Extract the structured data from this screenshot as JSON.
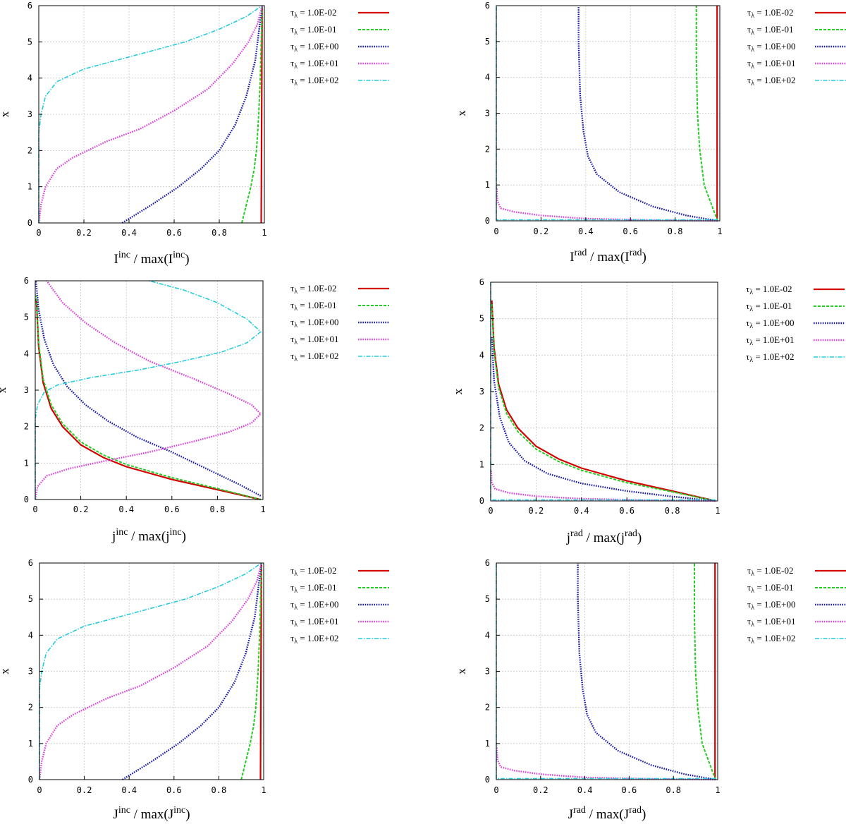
{
  "chart_data": [
    {
      "type": "line",
      "panel": "I_inc",
      "xlabel": {
        "base": "I",
        "sup": "inc",
        "mid": " / max(I",
        "sup2": "inc",
        "end": ")"
      },
      "ylabel": "x",
      "xlim": [
        0,
        1
      ],
      "ylim": [
        0,
        6
      ],
      "xticks": [
        "0",
        "0.2",
        "0.4",
        "0.6",
        "0.8",
        "1"
      ],
      "yticks": [
        "0",
        "1",
        "2",
        "3",
        "4",
        "5",
        "6"
      ],
      "legend_position": "outside-right",
      "grid": true,
      "series": [
        {
          "name": "1.0E-02",
          "color": "#d40000",
          "dash": "solid",
          "x": [
            0.986,
            0.99
          ],
          "y": [
            0,
            6
          ]
        },
        {
          "name": "1.0E-01",
          "color": "#22cc22",
          "dash": "dashed",
          "x": [
            0.9,
            0.92,
            0.94,
            0.955,
            0.965,
            0.975,
            0.982,
            0.99
          ],
          "y": [
            0,
            0.5,
            1,
            1.5,
            2,
            3,
            4,
            6
          ]
        },
        {
          "name": "1.0E+00",
          "color": "#1a1aaa",
          "dash": "dotted",
          "x": [
            0.37,
            0.5,
            0.62,
            0.72,
            0.8,
            0.87,
            0.92,
            0.96,
            0.99
          ],
          "y": [
            0,
            0.5,
            1,
            1.5,
            2,
            2.7,
            3.5,
            4.5,
            6
          ]
        },
        {
          "name": "1.0E+01",
          "color": "#dd44dd",
          "dash": "dotted",
          "x": [
            0,
            0.01,
            0.03,
            0.08,
            0.15,
            0.3,
            0.45,
            0.6,
            0.75,
            0.86,
            0.93,
            0.97,
            0.99
          ],
          "y": [
            0,
            0.5,
            1,
            1.5,
            1.8,
            2.25,
            2.6,
            3.1,
            3.7,
            4.4,
            5,
            5.5,
            6
          ]
        },
        {
          "name": "1.0E+02",
          "color": "#22ccdd",
          "dash": "dashdot",
          "x": [
            0,
            0.0,
            0.01,
            0.03,
            0.08,
            0.2,
            0.35,
            0.5,
            0.65,
            0.8,
            0.92,
            0.99
          ],
          "y": [
            0,
            2.5,
            3.0,
            3.5,
            3.9,
            4.25,
            4.5,
            4.75,
            5.0,
            5.35,
            5.7,
            6
          ]
        }
      ]
    },
    {
      "type": "line",
      "panel": "I_rad",
      "xlabel": {
        "base": "I",
        "sup": "rad",
        "mid": " / max(I",
        "sup2": "rad",
        "end": ")"
      },
      "ylabel": "x",
      "xlim": [
        0,
        1
      ],
      "ylim": [
        0,
        6
      ],
      "xticks": [
        "0",
        "0.2",
        "0.4",
        "0.6",
        "0.8",
        "1"
      ],
      "yticks": [
        "0",
        "1",
        "2",
        "3",
        "4",
        "5",
        "6"
      ],
      "legend_position": "outside-right",
      "grid": true,
      "series": [
        {
          "name": "1.0E-02",
          "color": "#d40000",
          "dash": "solid",
          "x": [
            0.988,
            0.988
          ],
          "y": [
            0,
            6
          ]
        },
        {
          "name": "1.0E-01",
          "color": "#22cc22",
          "dash": "dashed",
          "x": [
            0.99,
            0.96,
            0.93,
            0.91,
            0.9,
            0.895,
            0.895
          ],
          "y": [
            0,
            0.5,
            1.0,
            2.0,
            3.0,
            4.5,
            6
          ]
        },
        {
          "name": "1.0E+00",
          "color": "#1a1aaa",
          "dash": "dotted",
          "x": [
            0.99,
            0.85,
            0.7,
            0.55,
            0.45,
            0.41,
            0.39,
            0.375,
            0.368,
            0.368
          ],
          "y": [
            0,
            0.15,
            0.4,
            0.8,
            1.3,
            1.8,
            2.5,
            3.5,
            5,
            6
          ]
        },
        {
          "name": "1.0E+01",
          "color": "#dd44dd",
          "dash": "dotted",
          "x": [
            0.99,
            0.7,
            0.4,
            0.2,
            0.08,
            0.02,
            0.005,
            0.002
          ],
          "y": [
            0,
            0.02,
            0.06,
            0.15,
            0.25,
            0.35,
            0.55,
            0.9
          ]
        },
        {
          "name": "1.0E+02",
          "color": "#22ccdd",
          "dash": "dashdot",
          "x": [
            0.99,
            0.0,
            0.0
          ],
          "y": [
            0.03,
            0.03,
            6
          ]
        }
      ]
    },
    {
      "type": "line",
      "panel": "j_inc",
      "xlabel": {
        "base": "j",
        "sup": "inc",
        "mid": " / max(j",
        "sup2": "inc",
        "end": ")"
      },
      "ylabel": "x",
      "xlim": [
        0,
        1
      ],
      "ylim": [
        0,
        6
      ],
      "xticks": [
        "0",
        "0.2",
        "0.4",
        "0.6",
        "0.8",
        "1"
      ],
      "yticks": [
        "0",
        "1",
        "2",
        "3",
        "4",
        "5",
        "6"
      ],
      "legend_position": "outside-right",
      "grid": true,
      "series": [
        {
          "name": "1.0E-02",
          "color": "#d40000",
          "dash": "solid",
          "x": [
            0.99,
            0.8,
            0.6,
            0.4,
            0.3,
            0.2,
            0.12,
            0.07,
            0.035,
            0.015,
            0.005
          ],
          "y": [
            0,
            0.27,
            0.55,
            0.9,
            1.15,
            1.5,
            2.0,
            2.5,
            3.2,
            4.2,
            5.5
          ]
        },
        {
          "name": "1.0E-01",
          "color": "#22cc22",
          "dash": "dashed",
          "x": [
            0.99,
            0.8,
            0.6,
            0.4,
            0.3,
            0.2,
            0.12,
            0.07,
            0.035,
            0.015,
            0.005
          ],
          "y": [
            0,
            0.3,
            0.6,
            0.96,
            1.22,
            1.58,
            2.08,
            2.6,
            3.3,
            4.3,
            5.6
          ]
        },
        {
          "name": "1.0E+00",
          "color": "#1a1aaa",
          "dash": "dotted",
          "x": [
            0.99,
            0.9,
            0.75,
            0.6,
            0.45,
            0.32,
            0.22,
            0.14,
            0.08,
            0.04,
            0.015,
            0.003
          ],
          "y": [
            0.1,
            0.4,
            0.85,
            1.3,
            1.7,
            2.15,
            2.6,
            3.1,
            3.7,
            4.4,
            5.2,
            6
          ]
        },
        {
          "name": "1.0E+01",
          "color": "#dd44dd",
          "dash": "dotted",
          "x": [
            0.0,
            0.01,
            0.05,
            0.15,
            0.3,
            0.5,
            0.7,
            0.85,
            0.95,
            0.99,
            0.95,
            0.85,
            0.7,
            0.5,
            0.35,
            0.22,
            0.12,
            0.05
          ],
          "y": [
            0,
            0.35,
            0.65,
            0.85,
            1.05,
            1.3,
            1.6,
            1.85,
            2.1,
            2.35,
            2.6,
            2.9,
            3.3,
            3.8,
            4.3,
            4.85,
            5.4,
            6
          ]
        },
        {
          "name": "1.0E+02",
          "color": "#22ccdd",
          "dash": "dashdot",
          "x": [
            0.0,
            0.0,
            0.01,
            0.04,
            0.1,
            0.25,
            0.45,
            0.65,
            0.82,
            0.93,
            0.99,
            0.93,
            0.8,
            0.65,
            0.5
          ],
          "y": [
            0,
            2.2,
            2.6,
            2.95,
            3.15,
            3.35,
            3.55,
            3.8,
            4.05,
            4.3,
            4.6,
            4.95,
            5.4,
            5.75,
            6.0
          ]
        }
      ]
    },
    {
      "type": "line",
      "panel": "j_rad",
      "xlabel": {
        "base": "j",
        "sup": "rad",
        "mid": " / max(j",
        "sup2": "rad",
        "end": ")"
      },
      "ylabel": "x",
      "xlim": [
        0,
        1
      ],
      "ylim": [
        0,
        6
      ],
      "xticks": [
        "0",
        "0.2",
        "0.4",
        "0.6",
        "0.8",
        "1"
      ],
      "yticks": [
        "0",
        "1",
        "2",
        "3",
        "4",
        "5",
        "6"
      ],
      "legend_position": "outside-right",
      "grid": true,
      "series": [
        {
          "name": "1.0E-02",
          "color": "#d40000",
          "dash": "solid",
          "x": [
            0.99,
            0.8,
            0.6,
            0.4,
            0.3,
            0.2,
            0.12,
            0.07,
            0.035,
            0.015,
            0.005
          ],
          "y": [
            0,
            0.27,
            0.55,
            0.9,
            1.15,
            1.5,
            2.0,
            2.5,
            3.2,
            4.2,
            5.5
          ]
        },
        {
          "name": "1.0E-01",
          "color": "#22cc22",
          "dash": "dashed",
          "x": [
            0.99,
            0.8,
            0.6,
            0.4,
            0.3,
            0.2,
            0.12,
            0.07,
            0.035,
            0.015,
            0.005
          ],
          "y": [
            0,
            0.25,
            0.5,
            0.84,
            1.08,
            1.42,
            1.9,
            2.4,
            3.1,
            4.1,
            5.4
          ]
        },
        {
          "name": "1.0E+00",
          "color": "#1a1aaa",
          "dash": "dotted",
          "x": [
            0.99,
            0.8,
            0.6,
            0.4,
            0.25,
            0.15,
            0.08,
            0.04,
            0.015,
            0.005
          ],
          "y": [
            0,
            0.12,
            0.27,
            0.48,
            0.75,
            1.1,
            1.6,
            2.3,
            3.3,
            4.5
          ]
        },
        {
          "name": "1.0E+01",
          "color": "#dd44dd",
          "dash": "dotted",
          "x": [
            0.99,
            0.7,
            0.4,
            0.2,
            0.08,
            0.02,
            0.005,
            0.002
          ],
          "y": [
            0,
            0.02,
            0.06,
            0.13,
            0.22,
            0.33,
            0.5,
            0.85
          ]
        },
        {
          "name": "1.0E+02",
          "color": "#22ccdd",
          "dash": "dashdot",
          "x": [
            0.99,
            0.0,
            0.0
          ],
          "y": [
            0.03,
            0.03,
            6
          ]
        }
      ]
    },
    {
      "type": "line",
      "panel": "J_inc",
      "xlabel": {
        "base": "J",
        "sup": "inc",
        "mid": " / max(J",
        "sup2": "inc",
        "end": ")"
      },
      "ylabel": "x",
      "xlim": [
        0,
        1
      ],
      "ylim": [
        0,
        6
      ],
      "xticks": [
        "0",
        "0.2",
        "0.4",
        "0.6",
        "0.8",
        "1"
      ],
      "yticks": [
        "0",
        "1",
        "2",
        "3",
        "4",
        "5",
        "6"
      ],
      "legend_position": "outside-right",
      "grid": true,
      "series": [
        {
          "name": "1.0E-02",
          "color": "#d40000",
          "dash": "solid",
          "x": [
            0.986,
            0.99
          ],
          "y": [
            0,
            6
          ]
        },
        {
          "name": "1.0E-01",
          "color": "#22cc22",
          "dash": "dashed",
          "x": [
            0.9,
            0.92,
            0.94,
            0.955,
            0.965,
            0.975,
            0.982,
            0.99
          ],
          "y": [
            0,
            0.5,
            1,
            1.5,
            2,
            3,
            4,
            6
          ]
        },
        {
          "name": "1.0E+00",
          "color": "#1a1aaa",
          "dash": "dotted",
          "x": [
            0.37,
            0.5,
            0.62,
            0.72,
            0.8,
            0.87,
            0.92,
            0.96,
            0.99
          ],
          "y": [
            0,
            0.5,
            1,
            1.5,
            2,
            2.7,
            3.5,
            4.5,
            6
          ]
        },
        {
          "name": "1.0E+01",
          "color": "#dd44dd",
          "dash": "dotted",
          "x": [
            0,
            0.01,
            0.03,
            0.08,
            0.15,
            0.3,
            0.45,
            0.6,
            0.75,
            0.86,
            0.93,
            0.97,
            0.99
          ],
          "y": [
            0,
            0.5,
            1,
            1.5,
            1.8,
            2.25,
            2.6,
            3.1,
            3.7,
            4.4,
            5,
            5.5,
            6
          ]
        },
        {
          "name": "1.0E+02",
          "color": "#22ccdd",
          "dash": "dashdot",
          "x": [
            0,
            0.0,
            0.01,
            0.03,
            0.08,
            0.2,
            0.35,
            0.5,
            0.65,
            0.8,
            0.92,
            0.99
          ],
          "y": [
            0,
            2.5,
            3.0,
            3.5,
            3.9,
            4.25,
            4.5,
            4.75,
            5.0,
            5.35,
            5.7,
            6
          ]
        }
      ]
    },
    {
      "type": "line",
      "panel": "J_rad",
      "xlabel": {
        "base": "J",
        "sup": "rad",
        "mid": " / max(J",
        "sup2": "rad",
        "end": ")"
      },
      "ylabel": "x",
      "xlim": [
        0,
        1
      ],
      "ylim": [
        0,
        6
      ],
      "xticks": [
        "0",
        "0.2",
        "0.4",
        "0.6",
        "0.8",
        "1"
      ],
      "yticks": [
        "0",
        "1",
        "2",
        "3",
        "4",
        "5",
        "6"
      ],
      "legend_position": "outside-right",
      "grid": true,
      "series": [
        {
          "name": "1.0E-02",
          "color": "#d40000",
          "dash": "solid",
          "x": [
            0.988,
            0.988
          ],
          "y": [
            0,
            6
          ]
        },
        {
          "name": "1.0E-01",
          "color": "#22cc22",
          "dash": "dashed",
          "x": [
            0.99,
            0.96,
            0.93,
            0.91,
            0.9,
            0.895,
            0.895
          ],
          "y": [
            0,
            0.5,
            1.0,
            2.0,
            3.0,
            4.5,
            6
          ]
        },
        {
          "name": "1.0E+00",
          "color": "#1a1aaa",
          "dash": "dotted",
          "x": [
            0.99,
            0.85,
            0.7,
            0.55,
            0.45,
            0.41,
            0.39,
            0.375,
            0.368,
            0.368
          ],
          "y": [
            0,
            0.15,
            0.4,
            0.8,
            1.3,
            1.8,
            2.5,
            3.5,
            5,
            6
          ]
        },
        {
          "name": "1.0E+01",
          "color": "#dd44dd",
          "dash": "dotted",
          "x": [
            0.99,
            0.7,
            0.4,
            0.2,
            0.08,
            0.02,
            0.005,
            0.002
          ],
          "y": [
            0,
            0.02,
            0.06,
            0.15,
            0.25,
            0.35,
            0.55,
            0.9
          ]
        },
        {
          "name": "1.0E+02",
          "color": "#22ccdd",
          "dash": "dashdot",
          "x": [
            0.99,
            0.0,
            0.0
          ],
          "y": [
            0.03,
            0.03,
            6
          ]
        }
      ]
    }
  ],
  "legend_prefix": "τ",
  "legend_prefix_sub": "λ",
  "legend_eq": " = "
}
